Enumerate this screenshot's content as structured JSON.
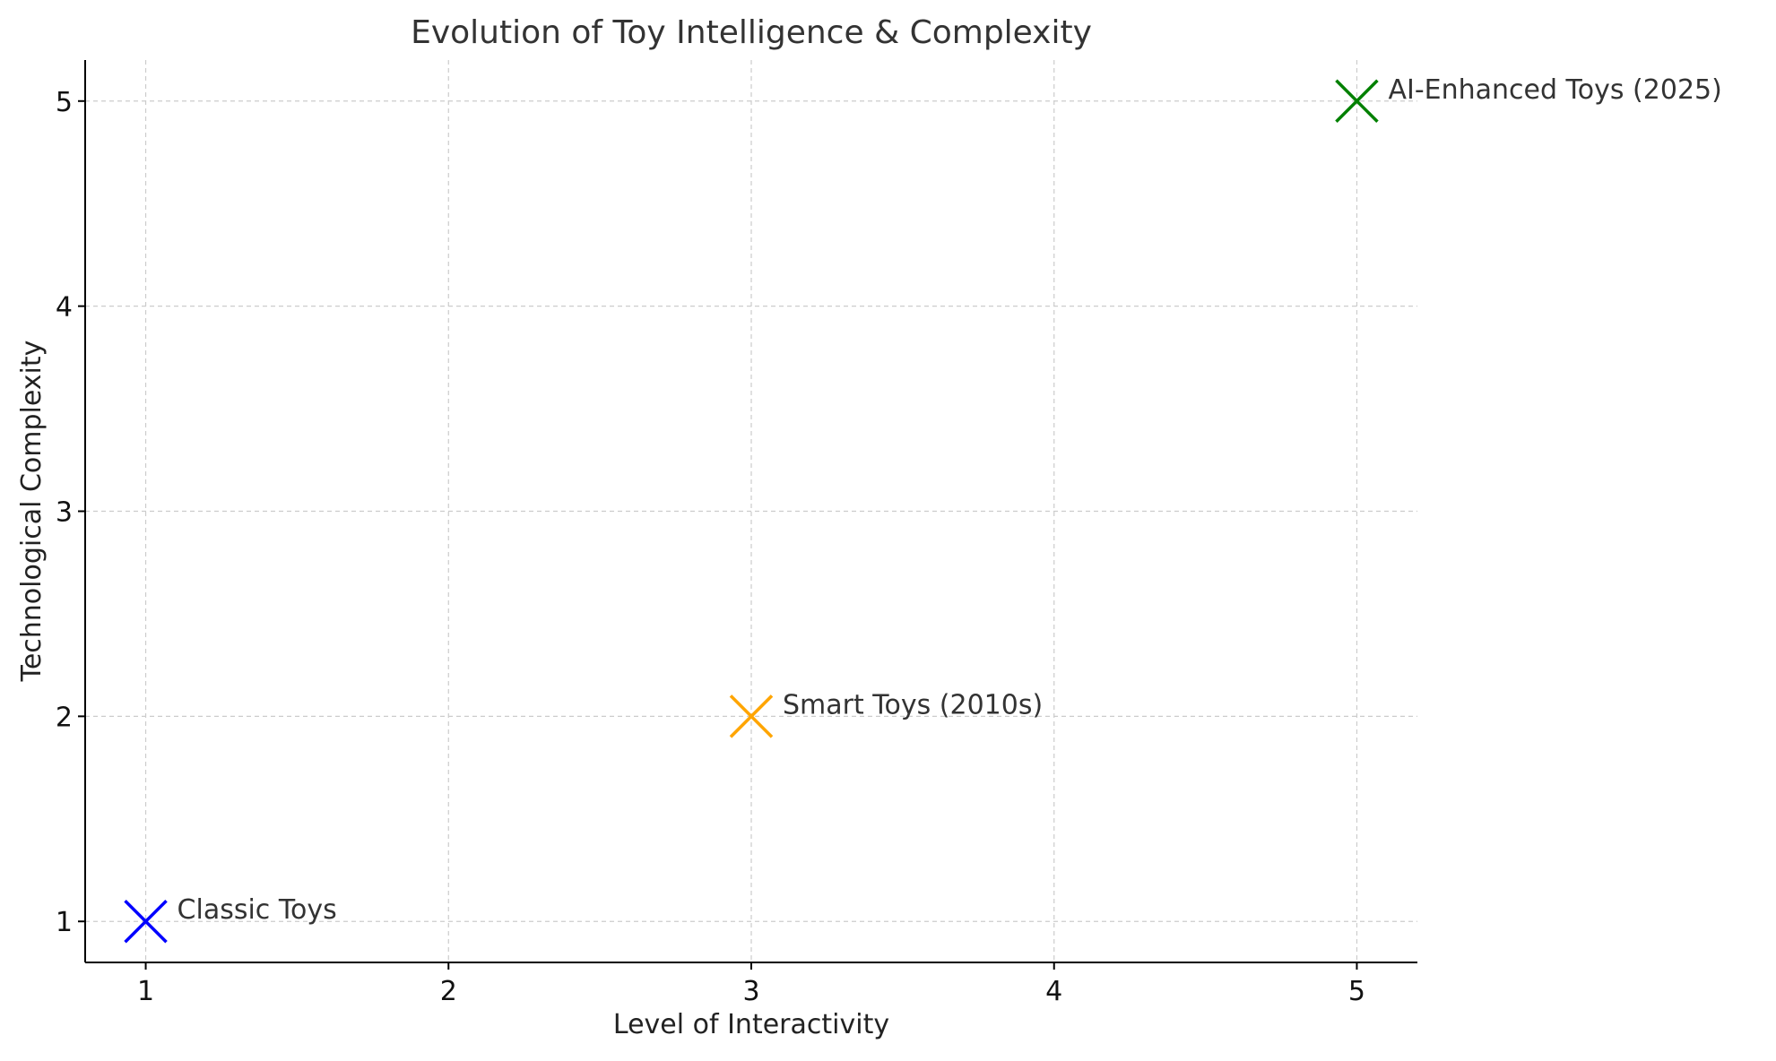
{
  "chart_data": {
    "type": "scatter",
    "title": "Evolution of Toy Intelligence & Complexity",
    "xlabel": "Level of Interactivity",
    "ylabel": "Technological Complexity",
    "xlim": [
      0.8,
      5.2
    ],
    "ylim": [
      0.8,
      5.2
    ],
    "xticks": [
      1,
      2,
      3,
      4,
      5
    ],
    "yticks": [
      1,
      2,
      3,
      4,
      5
    ],
    "grid": true,
    "marker": "x",
    "points": [
      {
        "x": 1,
        "y": 1,
        "label": "Classic Toys",
        "color": "#0000ff"
      },
      {
        "x": 3,
        "y": 2,
        "label": "Smart Toys (2010s)",
        "color": "#ffa500"
      },
      {
        "x": 5,
        "y": 5,
        "label": "AI-Enhanced Toys (2025)",
        "color": "#008000"
      }
    ]
  }
}
